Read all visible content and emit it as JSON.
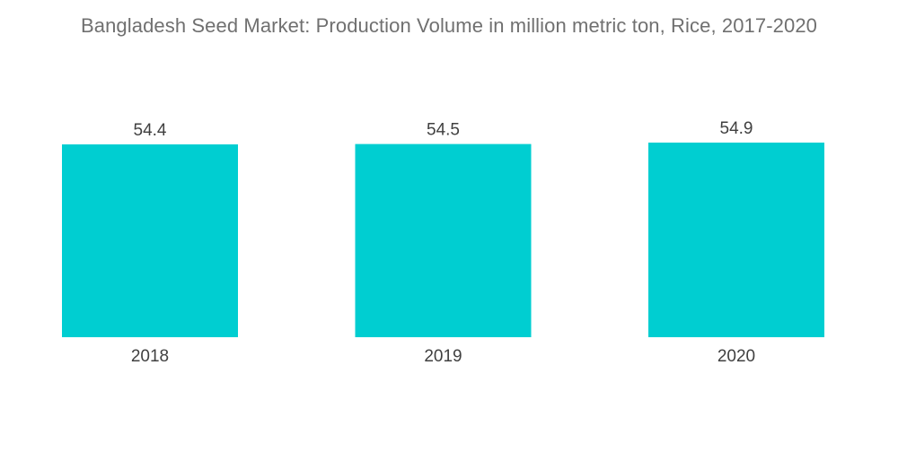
{
  "chart_data": {
    "type": "bar",
    "title": "Bangladesh Seed Market: Production Volume in million metric ton, Rice, 2017-2020",
    "xlabel": "",
    "ylabel": "",
    "categories": [
      "2018",
      "2019",
      "2020"
    ],
    "values": [
      54.4,
      54.5,
      54.9
    ],
    "data_labels": [
      "54.4",
      "54.5",
      "54.9"
    ],
    "ylim": [
      0,
      54.9
    ],
    "grid": false,
    "legend": "none",
    "bar_color": "#00ced1"
  }
}
